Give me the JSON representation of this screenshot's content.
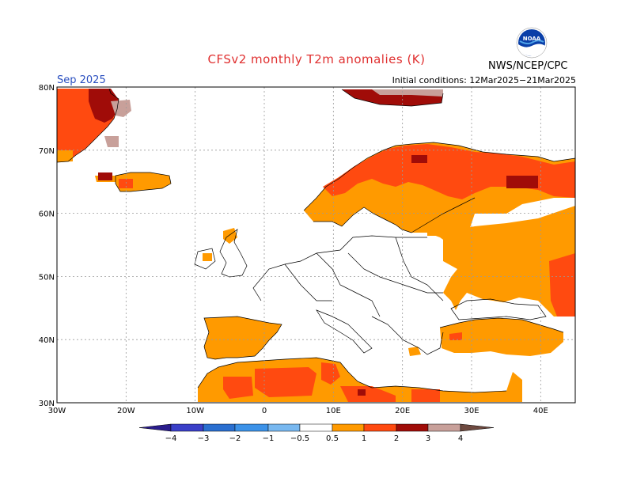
{
  "header": {
    "title": "CFSv2 monthly T2m anomalies (K)",
    "month": "Sep 2025",
    "initial_conditions": "Initial conditions: 12Mar2025−21Mar2025",
    "agency": "NWS/NCEP/CPC",
    "logo_text": "NOAA"
  },
  "map": {
    "lon_labels": [
      "30W",
      "20W",
      "10W",
      "0",
      "10E",
      "20E",
      "30E",
      "40E"
    ],
    "lat_labels": [
      "80N",
      "70N",
      "60N",
      "50N",
      "40N",
      "30N"
    ],
    "lon_range": [
      -30,
      45
    ],
    "lat_range": [
      30,
      80
    ]
  },
  "colorbar": {
    "ticks": [
      "−4",
      "−3",
      "−2",
      "−1",
      "−0.5",
      "0.5",
      "1",
      "2",
      "3",
      "4"
    ],
    "colors": [
      "#2a1c8c",
      "#3a3fc8",
      "#2a6fd0",
      "#3c92e8",
      "#78b8f0",
      "#ffffff",
      "#ff9a00",
      "#ff4a10",
      "#a00c08",
      "#c8a09a",
      "#6e4a40"
    ]
  },
  "colors": {
    "anom_05_1": "#ff9a00",
    "anom_1_2": "#ff4a10",
    "anom_2_3": "#a00c08",
    "anom_3_4": "#c8a09a"
  }
}
